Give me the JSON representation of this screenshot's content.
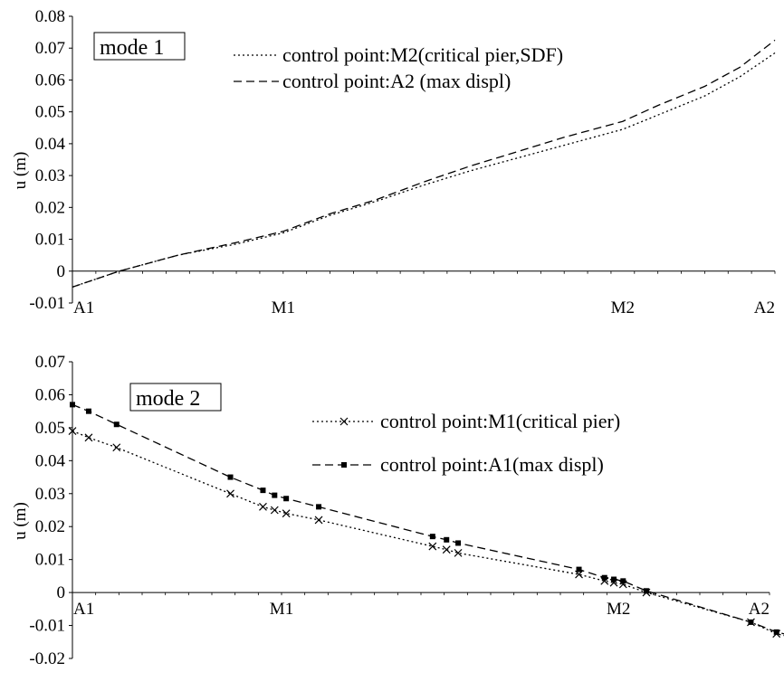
{
  "chart_data": [
    {
      "type": "line",
      "annotation": "mode 1",
      "ylabel": "u (m)",
      "ylim": [
        -0.01,
        0.08
      ],
      "yticks": [
        "-0.01",
        "0",
        "0.01",
        "0.02",
        "0.03",
        "0.04",
        "0.05",
        "0.06",
        "0.07",
        "0.08"
      ],
      "xlim": [
        0,
        3
      ],
      "categories": [
        "A1",
        "M1",
        "M2",
        "A2"
      ],
      "category_positions": [
        0,
        0.9,
        2.35,
        3
      ],
      "grid": false,
      "legend_position": "top-right",
      "series": [
        {
          "name": "control point:M2(critical pier,SDF)",
          "style": "dotted",
          "x": [
            0,
            0.2,
            0.45,
            0.7,
            0.9,
            1.1,
            1.3,
            1.5,
            1.7,
            1.9,
            2.1,
            2.35,
            2.5,
            2.7,
            2.85,
            3.0
          ],
          "y": [
            -0.005,
            0.0,
            0.005,
            0.0085,
            0.012,
            0.0175,
            0.022,
            0.027,
            0.0315,
            0.0355,
            0.0395,
            0.0445,
            0.049,
            0.055,
            0.061,
            0.0685
          ]
        },
        {
          "name": "control point:A2 (max displ)",
          "style": "dashed",
          "x": [
            0,
            0.2,
            0.45,
            0.7,
            0.9,
            1.1,
            1.3,
            1.5,
            1.7,
            1.9,
            2.1,
            2.35,
            2.5,
            2.7,
            2.85,
            3.0
          ],
          "y": [
            -0.005,
            0.0,
            0.005,
            0.009,
            0.0125,
            0.018,
            0.0225,
            0.028,
            0.033,
            0.0375,
            0.042,
            0.047,
            0.052,
            0.058,
            0.064,
            0.0725
          ]
        }
      ]
    },
    {
      "type": "line",
      "annotation": "mode 2",
      "ylabel": "u (m)",
      "ylim": [
        -0.02,
        0.07
      ],
      "yticks": [
        "-0.02",
        "-0.01",
        "0",
        "0.01",
        "0.02",
        "0.03",
        "0.04",
        "0.05",
        "0.06",
        "0.07"
      ],
      "xlim": [
        0,
        3
      ],
      "categories": [
        "A1",
        "M1",
        "M2",
        "A2"
      ],
      "category_positions": [
        0,
        0.9,
        2.35,
        3
      ],
      "grid": false,
      "legend_position": "top-right",
      "series": [
        {
          "name": "control point:M1(critical pier)",
          "style": "dotted-x",
          "x": [
            0,
            0.07,
            0.19,
            0.68,
            0.82,
            0.87,
            0.92,
            1.06,
            1.55,
            1.61,
            1.66,
            2.18,
            2.29,
            2.33,
            2.37,
            2.47,
            2.92,
            3.03,
            3.09
          ],
          "y": [
            0.049,
            0.047,
            0.044,
            0.03,
            0.026,
            0.025,
            0.024,
            0.022,
            0.014,
            0.013,
            0.012,
            0.0055,
            0.0035,
            0.003,
            0.0025,
            0.0,
            -0.009,
            -0.0125,
            -0.0135
          ]
        },
        {
          "name": "control point:A1(max displ)",
          "style": "dashed-square",
          "x": [
            0,
            0.07,
            0.19,
            0.68,
            0.82,
            0.87,
            0.92,
            1.06,
            1.55,
            1.61,
            1.66,
            2.18,
            2.29,
            2.33,
            2.37,
            2.47,
            2.92,
            3.03,
            3.09
          ],
          "y": [
            0.057,
            0.055,
            0.051,
            0.035,
            0.031,
            0.0295,
            0.0285,
            0.026,
            0.017,
            0.016,
            0.015,
            0.007,
            0.0045,
            0.004,
            0.0035,
            0.0005,
            -0.009,
            -0.012,
            -0.013
          ]
        }
      ]
    }
  ]
}
